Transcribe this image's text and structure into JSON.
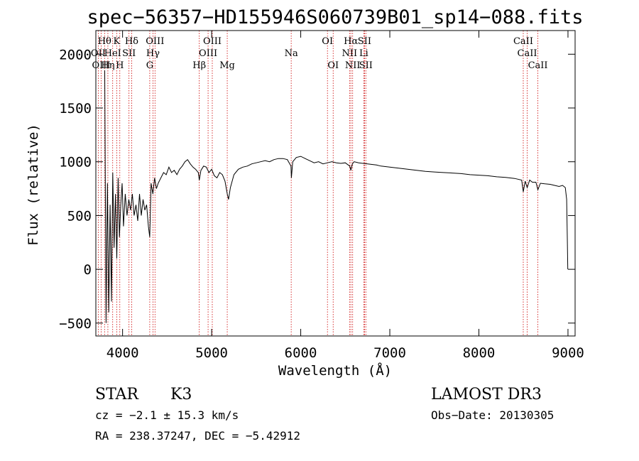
{
  "chart_data": {
    "type": "line",
    "title": "spec−56357−HD155946S060739B01_sp14−088.fits",
    "xlabel": "Wavelength (Å)",
    "ylabel": "Flux (relative)",
    "xlim": [
      3700,
      9080
    ],
    "ylim": [
      -620,
      2220
    ],
    "x_ticks": [
      4000,
      5000,
      6000,
      7000,
      8000,
      9000
    ],
    "y_ticks": [
      -500,
      0,
      500,
      1000,
      1500,
      2000
    ],
    "x_tick_labels": [
      "4000",
      "5000",
      "6000",
      "7000",
      "8000",
      "9000"
    ],
    "y_tick_labels": [
      "−500",
      "0",
      "500",
      "1000",
      "1500",
      "2000"
    ],
    "series": [
      {
        "name": "flux",
        "x": [
          3800,
          3815,
          3830,
          3845,
          3860,
          3875,
          3890,
          3905,
          3920,
          3935,
          3950,
          3965,
          3980,
          3995,
          4010,
          4030,
          4050,
          4070,
          4090,
          4110,
          4130,
          4150,
          4170,
          4190,
          4210,
          4230,
          4250,
          4270,
          4290,
          4305,
          4320,
          4340,
          4360,
          4380,
          4400,
          4430,
          4460,
          4490,
          4520,
          4550,
          4580,
          4610,
          4640,
          4670,
          4700,
          4730,
          4760,
          4790,
          4820,
          4850,
          4861,
          4880,
          4910,
          4940,
          4970,
          5000,
          5030,
          5060,
          5090,
          5120,
          5150,
          5175,
          5190,
          5210,
          5250,
          5300,
          5350,
          5400,
          5450,
          5500,
          5550,
          5600,
          5650,
          5700,
          5750,
          5800,
          5850,
          5890,
          5895,
          5910,
          5950,
          6000,
          6050,
          6100,
          6150,
          6200,
          6250,
          6300,
          6350,
          6400,
          6450,
          6500,
          6550,
          6563,
          6580,
          6600,
          6650,
          6700,
          6750,
          6800,
          6850,
          6900,
          6950,
          7000,
          7100,
          7200,
          7300,
          7400,
          7500,
          7600,
          7700,
          7800,
          7900,
          8000,
          8100,
          8200,
          8300,
          8400,
          8480,
          8498,
          8520,
          8542,
          8570,
          8600,
          8640,
          8662,
          8690,
          8740,
          8800,
          8850,
          8900,
          8940,
          8970,
          8985,
          8992,
          8998
        ],
        "values": [
          1850,
          -500,
          800,
          -400,
          600,
          -300,
          900,
          200,
          700,
          100,
          850,
          300,
          600,
          800,
          400,
          700,
          500,
          650,
          550,
          700,
          500,
          600,
          450,
          700,
          500,
          650,
          550,
          600,
          400,
          300,
          800,
          700,
          850,
          750,
          800,
          850,
          900,
          880,
          950,
          900,
          920,
          880,
          930,
          960,
          1000,
          1020,
          980,
          950,
          930,
          900,
          830,
          920,
          960,
          950,
          900,
          930,
          870,
          850,
          900,
          880,
          820,
          700,
          650,
          760,
          880,
          930,
          950,
          960,
          980,
          990,
          1000,
          1010,
          1000,
          1020,
          1030,
          1030,
          1020,
          960,
          850,
          1000,
          1040,
          1050,
          1030,
          1010,
          990,
          1000,
          980,
          990,
          1000,
          990,
          985,
          990,
          960,
          920,
          980,
          1000,
          990,
          985,
          980,
          975,
          970,
          960,
          955,
          950,
          940,
          930,
          920,
          910,
          905,
          900,
          895,
          890,
          880,
          875,
          870,
          860,
          855,
          845,
          830,
          720,
          820,
          760,
          830,
          810,
          810,
          740,
          800,
          795,
          790,
          780,
          770,
          780,
          760,
          650,
          300,
          0
        ]
      }
    ],
    "spectral_lines": [
      {
        "name": "Hθ",
        "wavelength": 3798,
        "row": 1
      },
      {
        "name": "OII",
        "wavelength": 3727,
        "row": 2
      },
      {
        "name": "Hη",
        "wavelength": 3835,
        "row": 3
      },
      {
        "name": "OIII",
        "wavelength": 3760,
        "row": 3
      },
      {
        "name": "HeI",
        "wavelength": 3889,
        "row": 2
      },
      {
        "name": "K",
        "wavelength": 3934,
        "row": 1
      },
      {
        "name": "SII",
        "wavelength": 4072,
        "row": 2
      },
      {
        "name": "H",
        "wavelength": 3969,
        "row": 3
      },
      {
        "name": "Hδ",
        "wavelength": 4102,
        "row": 1
      },
      {
        "name": "OIII",
        "wavelength": 4364,
        "row": 1
      },
      {
        "name": "Hγ",
        "wavelength": 4341,
        "row": 2
      },
      {
        "name": "G",
        "wavelength": 4305,
        "row": 3
      },
      {
        "name": "OIII",
        "wavelength": 5007,
        "row": 1
      },
      {
        "name": "OIII",
        "wavelength": 4960,
        "row": 2
      },
      {
        "name": "Hβ",
        "wavelength": 4861,
        "row": 3
      },
      {
        "name": "Mg",
        "wavelength": 5175,
        "row": 3
      },
      {
        "name": "Na",
        "wavelength": 5893,
        "row": 2
      },
      {
        "name": "OI",
        "wavelength": 6300,
        "row": 1
      },
      {
        "name": "OI",
        "wavelength": 6364,
        "row": 3
      },
      {
        "name": "Hα",
        "wavelength": 6563,
        "row": 1
      },
      {
        "name": "NII",
        "wavelength": 6548,
        "row": 2
      },
      {
        "name": "NII",
        "wavelength": 6583,
        "row": 3
      },
      {
        "name": "SII",
        "wavelength": 6716,
        "row": 1
      },
      {
        "name": "Li",
        "wavelength": 6708,
        "row": 2
      },
      {
        "name": "SII",
        "wavelength": 6731,
        "row": 3
      },
      {
        "name": "CaII",
        "wavelength": 8498,
        "row": 1
      },
      {
        "name": "CaII",
        "wavelength": 8542,
        "row": 2
      },
      {
        "name": "CaII",
        "wavelength": 8662,
        "row": 3
      }
    ],
    "line_color": "#000000",
    "marker_color": "#cc0000"
  },
  "info": {
    "object_type": "STAR",
    "subclass": "K3",
    "survey": "LAMOST DR3",
    "cz": "cz = −2.1 ± 15.3 km/s",
    "obs_date": "Obs−Date: 20130305",
    "coords": "RA = 238.37247, DEC =  −5.42912"
  }
}
